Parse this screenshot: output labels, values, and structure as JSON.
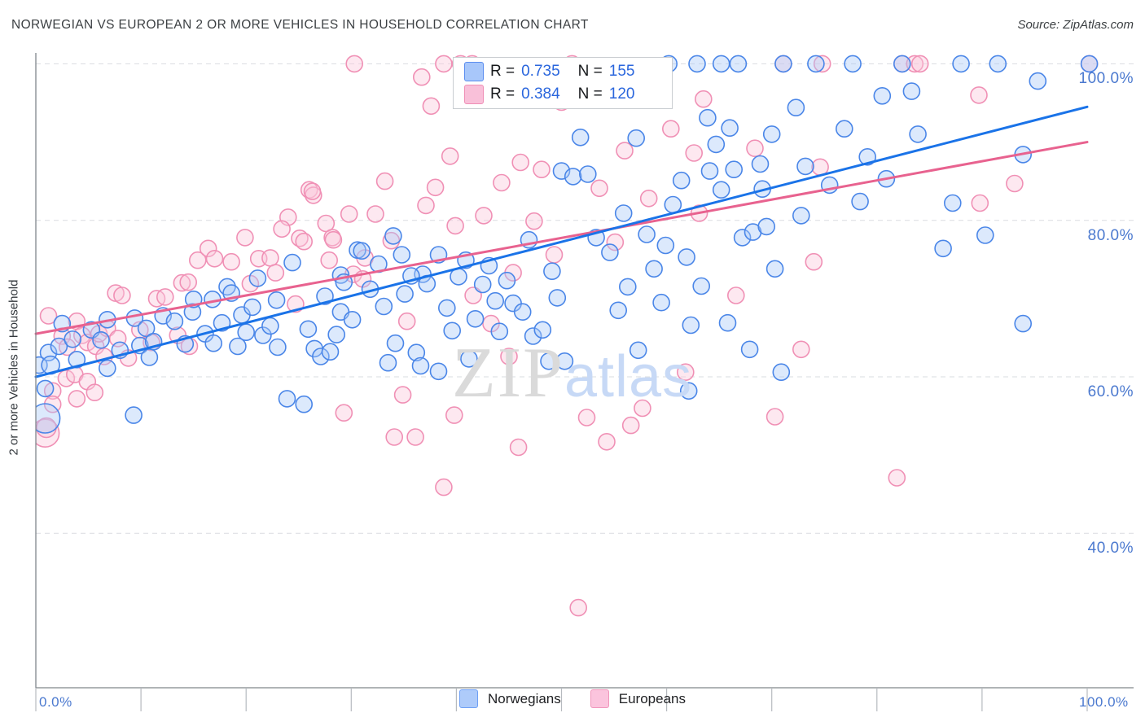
{
  "header": {
    "title": "NORWEGIAN VS EUROPEAN 2 OR MORE VEHICLES IN HOUSEHOLD CORRELATION CHART",
    "source": "Source: ZipAtlas.com"
  },
  "watermark": {
    "zip": "ZIP",
    "atlas": "atlas"
  },
  "axes": {
    "y_title": "2 or more Vehicles in Household",
    "y_ticks": [
      "100.0%",
      "80.0%",
      "60.0%",
      "40.0%"
    ],
    "x_tick_left": "0.0%",
    "x_tick_right": "100.0%"
  },
  "legend_box": {
    "rows": [
      {
        "r_label": "R =",
        "r_value": "0.735",
        "n_label": "N =",
        "n_value": "155"
      },
      {
        "r_label": "R =",
        "r_value": "0.384",
        "n_label": "N =",
        "n_value": "120"
      }
    ]
  },
  "bottom_legend": [
    {
      "label": "Norwegians",
      "color": "#aecbfa"
    },
    {
      "label": "Europeans",
      "color": "#fbc4dd"
    }
  ],
  "chart_data": {
    "type": "scatter",
    "title": "NORWEGIAN VS EUROPEAN 2 OR MORE VEHICLES IN HOUSEHOLD CORRELATION CHART",
    "xlabel": "",
    "ylabel": "2 or more Vehicles in Household",
    "x_range": [
      0,
      100
    ],
    "y_range": [
      20,
      101.5
    ],
    "y_gridlines": [
      100,
      80,
      60,
      40
    ],
    "grid_color": "#dadce0",
    "axis_color": "#80868b",
    "series": [
      {
        "name": "Europeans",
        "R": 0.384,
        "N": 120,
        "stroke": "#f090b5",
        "fill": "rgba(250,200,220,0.42)",
        "trend_color": "#e8628f",
        "trend": {
          "x0": 0,
          "y0": 65.5,
          "x1": 100,
          "y1": 90
        },
        "points": [
          [
            0.9,
            52.8,
            17
          ],
          [
            1,
            53.5,
            12
          ],
          [
            1.2,
            67.8
          ],
          [
            1.6,
            58.2
          ],
          [
            1.6,
            56.5
          ],
          [
            2.5,
            65.2
          ],
          [
            2.9,
            59.8
          ],
          [
            3,
            63.8
          ],
          [
            3.7,
            60.3
          ],
          [
            3.9,
            67.1
          ],
          [
            3.9,
            57.2
          ],
          [
            4.4,
            65.3
          ],
          [
            4.9,
            64.4
          ],
          [
            4.9,
            59.4
          ],
          [
            5.6,
            58
          ],
          [
            5.7,
            63.9
          ],
          [
            6,
            65.5
          ],
          [
            6.5,
            62.6
          ],
          [
            6.8,
            66.2
          ],
          [
            7.6,
            70.7
          ],
          [
            7.8,
            64.9
          ],
          [
            8.2,
            70.4
          ],
          [
            8.8,
            62.4
          ],
          [
            9.9,
            66
          ],
          [
            11,
            64.4
          ],
          [
            11.5,
            70
          ],
          [
            12.3,
            70.2
          ],
          [
            13.5,
            65.3
          ],
          [
            13.9,
            72
          ],
          [
            14.5,
            72.1
          ],
          [
            14.6,
            63.9
          ],
          [
            15.4,
            74.9
          ],
          [
            16.4,
            76.4
          ],
          [
            17,
            75.1
          ],
          [
            18.6,
            74.7
          ],
          [
            19.9,
            77.8
          ],
          [
            21.2,
            75.1
          ],
          [
            22.3,
            75.2
          ],
          [
            22.8,
            73.3
          ],
          [
            24,
            80.4
          ],
          [
            25.1,
            77.7
          ],
          [
            25.5,
            77.3
          ],
          [
            26,
            83.9
          ],
          [
            26.4,
            83.2
          ],
          [
            26.3,
            83.7
          ],
          [
            27.6,
            79.6
          ],
          [
            27.9,
            74.9
          ],
          [
            28.2,
            77.8
          ],
          [
            28.3,
            77.5
          ],
          [
            29.8,
            80.8
          ],
          [
            20.4,
            71.9
          ],
          [
            23.4,
            78.9
          ],
          [
            29.3,
            55.4
          ],
          [
            24.7,
            69.3
          ],
          [
            30.2,
            73.1
          ],
          [
            31.1,
            72.5
          ],
          [
            31.3,
            75.2
          ],
          [
            32.3,
            80.8
          ],
          [
            33.2,
            85
          ],
          [
            34.1,
            52.3
          ],
          [
            34.9,
            57.7
          ],
          [
            35.3,
            67.1
          ],
          [
            36.1,
            52.3
          ],
          [
            37.1,
            81.9
          ],
          [
            38,
            84.2
          ],
          [
            38.8,
            100
          ],
          [
            38.8,
            45.9
          ],
          [
            39.4,
            88.2
          ],
          [
            39.8,
            55.1
          ],
          [
            30.3,
            100
          ],
          [
            36.7,
            98.3
          ],
          [
            37.6,
            94.6
          ],
          [
            33.8,
            77.4
          ],
          [
            39.9,
            79.3
          ],
          [
            40.4,
            100
          ],
          [
            41.5,
            100
          ],
          [
            41.6,
            70.4
          ],
          [
            42.6,
            80.6
          ],
          [
            43.3,
            66.8
          ],
          [
            45,
            62.6
          ],
          [
            45.4,
            73.3
          ],
          [
            45.9,
            51
          ],
          [
            46.1,
            87.4
          ],
          [
            48.1,
            86.5
          ],
          [
            44.3,
            84.8
          ],
          [
            47.4,
            79.9
          ],
          [
            49.3,
            75.6
          ],
          [
            50,
            95.1
          ],
          [
            51.6,
            30.5
          ],
          [
            52.4,
            54.8
          ],
          [
            54.3,
            51.7
          ],
          [
            56.6,
            53.8
          ],
          [
            57.7,
            56
          ],
          [
            59.4,
            96.6
          ],
          [
            53.6,
            84.1
          ],
          [
            55.1,
            77.2
          ],
          [
            58.3,
            82.8
          ],
          [
            51,
            100
          ],
          [
            56,
            88.9
          ],
          [
            60.4,
            91.7
          ],
          [
            61.8,
            60.6
          ],
          [
            62.6,
            88.6
          ],
          [
            63.5,
            95.5
          ],
          [
            66.6,
            70.4
          ],
          [
            68.4,
            89.2
          ],
          [
            70.3,
            54.9
          ],
          [
            71.1,
            100
          ],
          [
            72.8,
            63.5
          ],
          [
            74,
            74.7
          ],
          [
            74.6,
            86.8
          ],
          [
            74.8,
            100
          ],
          [
            63.1,
            80.9
          ],
          [
            82.4,
            100
          ],
          [
            83.6,
            100
          ],
          [
            84.1,
            100
          ],
          [
            81.9,
            47.1
          ],
          [
            89.8,
            82.2
          ],
          [
            100.2,
            100
          ],
          [
            89.7,
            96
          ],
          [
            93.1,
            84.7
          ]
        ]
      },
      {
        "name": "Norwegians",
        "R": 0.735,
        "N": 155,
        "stroke": "#4a86e8",
        "fill": "rgba(167,199,247,0.4)",
        "trend_color": "#1a73e8",
        "trend": {
          "x0": 0,
          "y0": 60,
          "x1": 100,
          "y1": 94.5
        },
        "points": [
          [
            0.3,
            61.5
          ],
          [
            0.9,
            58.5
          ],
          [
            0.9,
            54.7,
            18
          ],
          [
            1.2,
            63.1
          ],
          [
            1.4,
            61.5,
            11
          ],
          [
            2.2,
            63.9
          ],
          [
            2.5,
            66.8
          ],
          [
            3.5,
            64.8
          ],
          [
            3.9,
            62.2
          ],
          [
            5.3,
            66
          ],
          [
            6.2,
            64.7
          ],
          [
            6.8,
            67.3
          ],
          [
            6.8,
            61.1
          ],
          [
            8,
            63.4
          ],
          [
            9.3,
            55.1
          ],
          [
            9.4,
            67.5
          ],
          [
            9.9,
            64
          ],
          [
            10.5,
            66.2
          ],
          [
            11.2,
            64.5
          ],
          [
            12.1,
            67.8
          ],
          [
            13.2,
            67.1
          ],
          [
            14.2,
            64.2
          ],
          [
            14.9,
            68.3
          ],
          [
            15,
            69.9
          ],
          [
            16.1,
            65.5
          ],
          [
            16.8,
            69.9
          ],
          [
            16.9,
            64.3
          ],
          [
            17.7,
            66.9
          ],
          [
            18.2,
            71.5
          ],
          [
            18.6,
            70.7
          ],
          [
            19.6,
            67.9
          ],
          [
            19.2,
            63.9
          ],
          [
            10.8,
            62.5
          ],
          [
            20,
            65.7
          ],
          [
            21.1,
            72.6
          ],
          [
            21.6,
            65.3
          ],
          [
            22.3,
            66.5
          ],
          [
            23,
            63.8
          ],
          [
            23.9,
            57.2
          ],
          [
            24.4,
            74.6
          ],
          [
            25.5,
            56.5
          ],
          [
            26.5,
            63.6
          ],
          [
            27.1,
            62.6
          ],
          [
            28,
            63.2
          ],
          [
            29,
            68.3
          ],
          [
            29,
            73
          ],
          [
            29.3,
            72.1
          ],
          [
            30.1,
            67.3
          ],
          [
            20.6,
            68.9
          ],
          [
            22.9,
            69.8
          ],
          [
            25.9,
            66.1
          ],
          [
            27.5,
            70.3
          ],
          [
            28.6,
            65.4
          ],
          [
            30.6,
            76.2
          ],
          [
            31,
            76.1
          ],
          [
            33.1,
            69
          ],
          [
            34,
            78
          ],
          [
            34.2,
            64.3
          ],
          [
            34.8,
            75.6
          ],
          [
            36.2,
            63.1
          ],
          [
            36.6,
            61.4
          ],
          [
            36.8,
            73.1
          ],
          [
            37.2,
            71.9
          ],
          [
            38.3,
            75.6
          ],
          [
            38.3,
            60.7
          ],
          [
            40.2,
            72.8
          ],
          [
            31.8,
            71.2
          ],
          [
            32.6,
            74.4
          ],
          [
            35.1,
            70.6
          ],
          [
            35.7,
            72.9
          ],
          [
            39.1,
            68.8
          ],
          [
            39.6,
            65.9
          ],
          [
            33.5,
            61.8
          ],
          [
            40.9,
            74.9
          ],
          [
            41.8,
            67.4
          ],
          [
            42.5,
            71.8
          ],
          [
            43.1,
            74.2
          ],
          [
            44.8,
            72.3
          ],
          [
            45.4,
            69.4
          ],
          [
            46.3,
            68.3
          ],
          [
            47.3,
            65.2
          ],
          [
            48.2,
            66
          ],
          [
            49.1,
            73.5
          ],
          [
            49.6,
            70.1
          ],
          [
            41.2,
            62.3
          ],
          [
            44.1,
            65.8
          ],
          [
            46.9,
            77.5
          ],
          [
            48.8,
            62
          ],
          [
            43.7,
            69.7
          ],
          [
            50,
            86.3
          ],
          [
            50.3,
            62
          ],
          [
            51.1,
            85.6
          ],
          [
            51.8,
            90.6
          ],
          [
            52.5,
            85.9
          ],
          [
            54.6,
            75.9
          ],
          [
            55.4,
            68.5
          ],
          [
            56.3,
            71.5
          ],
          [
            57.1,
            90.5
          ],
          [
            57.3,
            63.4
          ],
          [
            58.8,
            73.8
          ],
          [
            59.5,
            69.5
          ],
          [
            53.3,
            77.8
          ],
          [
            55.9,
            80.9
          ],
          [
            58.1,
            78.2
          ],
          [
            59.9,
            76.8
          ],
          [
            60.2,
            100
          ],
          [
            60.6,
            82
          ],
          [
            61.4,
            85.1
          ],
          [
            62.1,
            58.2
          ],
          [
            62.3,
            66.6
          ],
          [
            62.9,
            100
          ],
          [
            63.3,
            71.6
          ],
          [
            63.9,
            93.1
          ],
          [
            64.1,
            86.3
          ],
          [
            65.2,
            100
          ],
          [
            65.2,
            83.9
          ],
          [
            65.8,
            66.9
          ],
          [
            66.4,
            86.5
          ],
          [
            66.8,
            100
          ],
          [
            67.2,
            77.8
          ],
          [
            67.9,
            63.5
          ],
          [
            68.2,
            78.5
          ],
          [
            69.5,
            79.2
          ],
          [
            64.7,
            89.7
          ],
          [
            61.9,
            75.3
          ],
          [
            68.9,
            87.2
          ],
          [
            66,
            91.8
          ],
          [
            69.1,
            84
          ],
          [
            70,
            91
          ],
          [
            70.3,
            73.8
          ],
          [
            70.9,
            60.6
          ],
          [
            71.1,
            100
          ],
          [
            72.3,
            94.4
          ],
          [
            74.2,
            100
          ],
          [
            76.9,
            91.7
          ],
          [
            77.7,
            100
          ],
          [
            78.4,
            82.4
          ],
          [
            73.2,
            86.9
          ],
          [
            75.5,
            84.5
          ],
          [
            79.1,
            88.1
          ],
          [
            72.8,
            80.6
          ],
          [
            80.5,
            95.9
          ],
          [
            80.9,
            85.3
          ],
          [
            82.4,
            100
          ],
          [
            83.3,
            96.5
          ],
          [
            86.3,
            76.4
          ],
          [
            88,
            100
          ],
          [
            91.5,
            100
          ],
          [
            93.9,
            66.8
          ],
          [
            100.2,
            100
          ],
          [
            83.9,
            91
          ],
          [
            87.2,
            82.2
          ],
          [
            93.9,
            88.4
          ],
          [
            90.3,
            78.1
          ],
          [
            95.3,
            97.8
          ]
        ]
      }
    ]
  }
}
